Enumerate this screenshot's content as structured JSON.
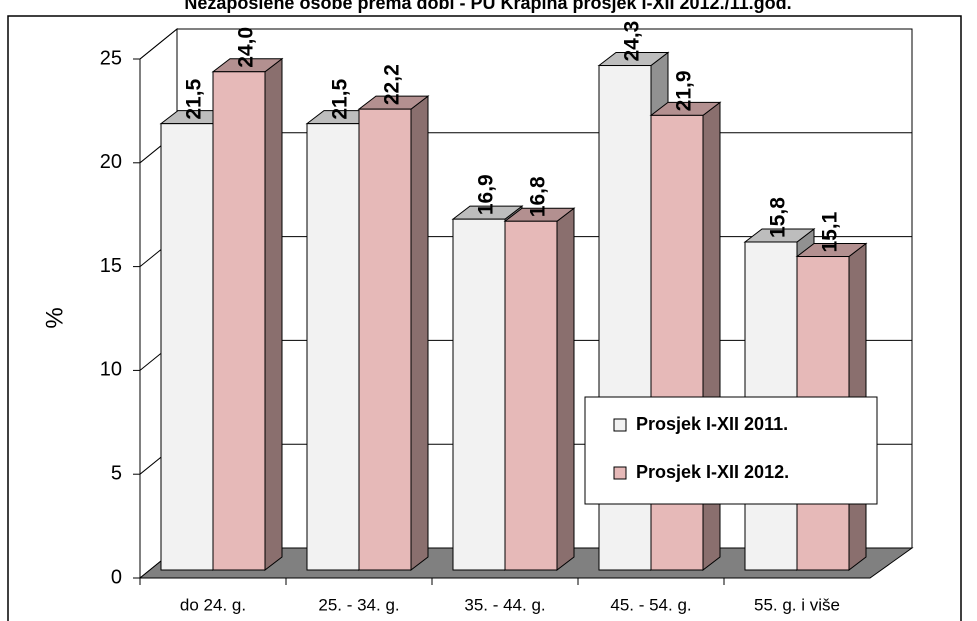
{
  "chart_data": {
    "type": "bar3d",
    "title": "Nezaposlene osobe prema dobi - PU Krapina prosjek I-XII 2012./11.god.",
    "y_label": "%",
    "categories": [
      "do 24. g.",
      "25. - 34. g.",
      "35. - 44. g.",
      "45. - 54. g.",
      "55. g. i više"
    ],
    "series": [
      {
        "name": "Prosjek I-XII 2011.",
        "color": "#f2f2f2",
        "values": [
          21.5,
          21.5,
          16.9,
          24.3,
          15.8
        ],
        "value_labels": [
          "21,5",
          "21,5",
          "16,9",
          "24,3",
          "15,8"
        ]
      },
      {
        "name": "Prosjek I-XII 2012.",
        "color": "#e6b9b8",
        "values": [
          24.0,
          22.2,
          16.8,
          21.9,
          15.1
        ],
        "value_labels": [
          "24,0",
          "22,2",
          "16,8",
          "21,9",
          "15,1"
        ]
      }
    ],
    "ylim": [
      0,
      25
    ],
    "yticks": [
      0,
      5,
      10,
      15,
      20,
      25
    ],
    "grid": true,
    "legend": "lower-right"
  }
}
